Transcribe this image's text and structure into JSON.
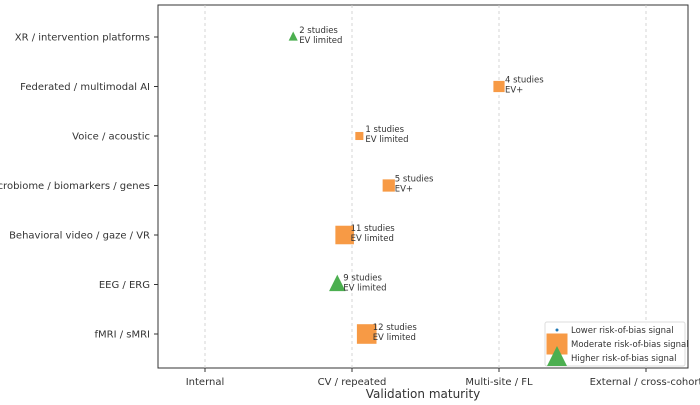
{
  "chart_data": {
    "type": "scatter",
    "xlabel": "Validation maturity",
    "x_categories": [
      "Internal",
      "CV / repeated",
      "Multi-site / FL",
      "External / cross-cohort"
    ],
    "y_categories": [
      "XR / intervention platforms",
      "Federated / multimodal AI",
      "Voice / acoustic",
      "Microbiome / biomarkers / genes",
      "Behavioral video / gaze / VR",
      "EEG / ERG",
      "fMRI / sMRI"
    ],
    "points": [
      {
        "category": "XR / intervention platforms",
        "x": 0.6,
        "studies": 2,
        "risk": "high",
        "label1": "2 studies",
        "label2": "EV limited"
      },
      {
        "category": "Federated / multimodal AI",
        "x": 2.0,
        "studies": 4,
        "risk": "moderate",
        "label1": "4 studies",
        "label2": "EV+"
      },
      {
        "category": "Voice / acoustic",
        "x": 1.05,
        "studies": 1,
        "risk": "moderate",
        "label1": "1 studies",
        "label2": "EV limited"
      },
      {
        "category": "Microbiome / biomarkers / genes",
        "x": 1.25,
        "studies": 5,
        "risk": "moderate",
        "label1": "5 studies",
        "label2": "EV+"
      },
      {
        "category": "Behavioral video / gaze / VR",
        "x": 0.95,
        "studies": 11,
        "risk": "moderate",
        "label1": "11 studies",
        "label2": "EV limited"
      },
      {
        "category": "EEG / ERG",
        "x": 0.9,
        "studies": 9,
        "risk": "high",
        "label1": "9 studies",
        "label2": "EV limited"
      },
      {
        "category": "fMRI / sMRI",
        "x": 1.1,
        "studies": 12,
        "risk": "moderate",
        "label1": "12 studies",
        "label2": "EV limited"
      }
    ],
    "legend": {
      "placement": "bottom-right",
      "entries": [
        {
          "name": "Lower risk-of-bias signal",
          "risk": "low"
        },
        {
          "name": "Moderate risk-of-bias signal",
          "risk": "moderate"
        },
        {
          "name": "Higher risk-of-bias signal",
          "risk": "high"
        }
      ]
    },
    "xgrid": true,
    "ygrid": false
  },
  "colors": {
    "moderate": "#f79a45",
    "high": "#4caf50",
    "low": "#1f77b4",
    "grid": "#cccccc"
  }
}
